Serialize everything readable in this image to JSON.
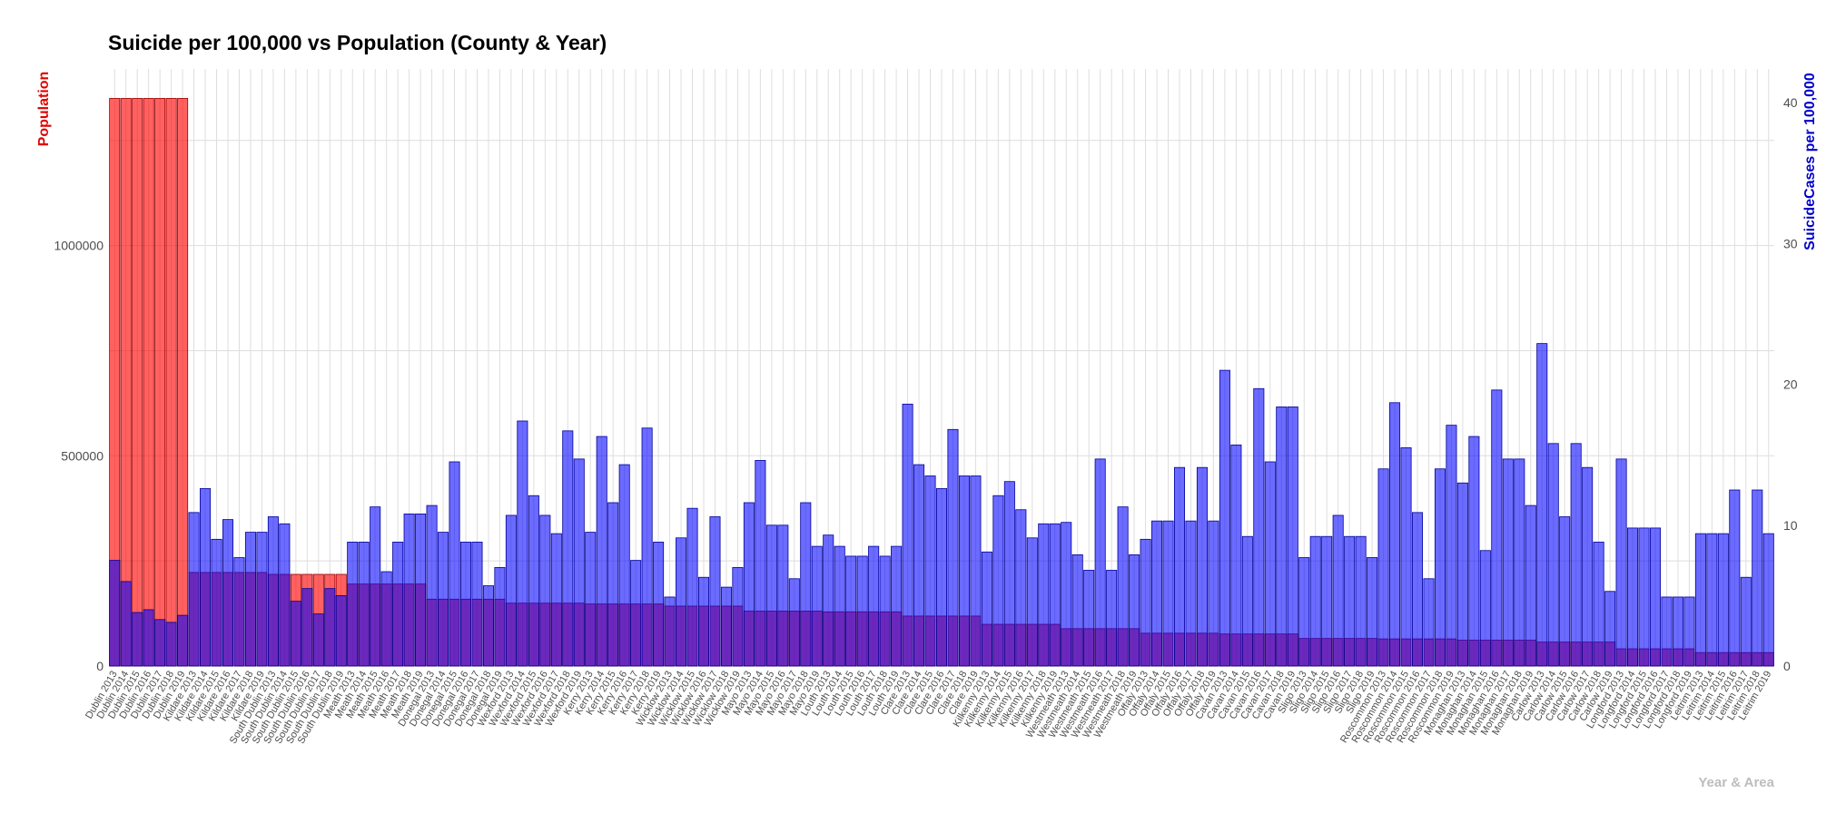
{
  "chart_data": {
    "type": "bar",
    "title": "Suicide per 100,000 vs Population (County & Year)",
    "xlabel": "Year & Area",
    "ylabel_left": "Population",
    "ylabel_right": "SuicideCases per 100,000",
    "ylim_left": [
      0,
      1420000
    ],
    "ylim_right": [
      0,
      42.4
    ],
    "yticks_left": [
      0,
      500000,
      1000000
    ],
    "yticks_left_labels": [
      "0",
      "500000",
      "1000000"
    ],
    "yticks_right": [
      0,
      10,
      20,
      30,
      40
    ],
    "grid": true,
    "colors": {
      "population": "#ff0000",
      "suicide": "#0000ff",
      "left_axis_title": "#e00000",
      "right_axis_title": "#0000cc"
    },
    "categories": [
      "Dublin 2013",
      "Dublin 2014",
      "Dublin 2015",
      "Dublin 2016",
      "Dublin 2017",
      "Dublin 2018",
      "Dublin 2019",
      "Kildare 2013",
      "Kildare 2014",
      "Kildare 2015",
      "Kildare 2016",
      "Kildare 2017",
      "Kildare 2018",
      "Kildare 2019",
      "South Dublin 2013",
      "South Dublin 2014",
      "South Dublin 2015",
      "South Dublin 2016",
      "South Dublin 2017",
      "South Dublin 2018",
      "South Dublin 2019",
      "Meath 2013",
      "Meath 2014",
      "Meath 2015",
      "Meath 2016",
      "Meath 2017",
      "Meath 2018",
      "Meath 2019",
      "Donegal 2013",
      "Donegal 2014",
      "Donegal 2015",
      "Donegal 2016",
      "Donegal 2017",
      "Donegal 2018",
      "Donegal 2019",
      "Wexford 2013",
      "Wexford 2014",
      "Wexford 2015",
      "Wexford 2016",
      "Wexford 2017",
      "Wexford 2018",
      "Wexford 2019",
      "Kerry 2013",
      "Kerry 2014",
      "Kerry 2015",
      "Kerry 2016",
      "Kerry 2017",
      "Kerry 2018",
      "Kerry 2019",
      "Wicklow 2013",
      "Wicklow 2014",
      "Wicklow 2015",
      "Wicklow 2016",
      "Wicklow 2017",
      "Wicklow 2018",
      "Wicklow 2019",
      "Mayo 2013",
      "Mayo 2014",
      "Mayo 2015",
      "Mayo 2016",
      "Mayo 2017",
      "Mayo 2018",
      "Mayo 2019",
      "Louth 2013",
      "Louth 2014",
      "Louth 2015",
      "Louth 2016",
      "Louth 2017",
      "Louth 2018",
      "Louth 2019",
      "Clare 2013",
      "Clare 2014",
      "Clare 2015",
      "Clare 2016",
      "Clare 2017",
      "Clare 2018",
      "Clare 2019",
      "Kilkenny 2013",
      "Kilkenny 2014",
      "Kilkenny 2015",
      "Kilkenny 2016",
      "Kilkenny 2017",
      "Kilkenny 2018",
      "Kilkenny 2019",
      "Westmeath 2013",
      "Westmeath 2014",
      "Westmeath 2015",
      "Westmeath 2016",
      "Westmeath 2017",
      "Westmeath 2018",
      "Westmeath 2019",
      "Offaly 2013",
      "Offaly 2014",
      "Offaly 2015",
      "Offaly 2016",
      "Offaly 2017",
      "Offaly 2018",
      "Offaly 2019",
      "Cavan 2013",
      "Cavan 2014",
      "Cavan 2015",
      "Cavan 2016",
      "Cavan 2017",
      "Cavan 2018",
      "Cavan 2019",
      "Sligo 2013",
      "Sligo 2014",
      "Sligo 2015",
      "Sligo 2016",
      "Sligo 2017",
      "Sligo 2018",
      "Sligo 2019",
      "Roscommon 2013",
      "Roscommon 2014",
      "Roscommon 2015",
      "Roscommon 2016",
      "Roscommon 2017",
      "Roscommon 2018",
      "Roscommon 2019",
      "Monaghan 2013",
      "Monaghan 2014",
      "Monaghan 2015",
      "Monaghan 2016",
      "Monaghan 2017",
      "Monaghan 2018",
      "Monaghan 2019",
      "Carlow 2013",
      "Carlow 2014",
      "Carlow 2015",
      "Carlow 2016",
      "Carlow 2017",
      "Carlow 2018",
      "Carlow 2019",
      "Longford 2013",
      "Longford 2014",
      "Longford 2015",
      "Longford 2016",
      "Longford 2017",
      "Longford 2018",
      "Longford 2019",
      "Leitrim 2013",
      "Leitrim 2014",
      "Leitrim 2015",
      "Leitrim 2016",
      "Leitrim 2017",
      "Leitrim 2018",
      "Leitrim 2019"
    ],
    "series": [
      {
        "name": "Population",
        "axis": "left",
        "values": [
          1350000,
          1350000,
          1350000,
          1350000,
          1350000,
          1350000,
          1350000,
          222500,
          222500,
          222500,
          222500,
          222500,
          222500,
          222500,
          218000,
          218000,
          218000,
          218000,
          218000,
          218000,
          218000,
          195000,
          195000,
          195000,
          195000,
          195000,
          195000,
          195000,
          159000,
          159000,
          159000,
          159000,
          159000,
          159000,
          159000,
          149500,
          149500,
          149500,
          149500,
          149500,
          149500,
          149500,
          147500,
          147500,
          147500,
          147500,
          147500,
          147500,
          147500,
          142500,
          142500,
          142500,
          142500,
          142500,
          142500,
          142500,
          130600,
          130600,
          130600,
          130600,
          130600,
          130600,
          130600,
          128900,
          128900,
          128900,
          128900,
          128900,
          128900,
          128900,
          118800,
          118800,
          118800,
          118800,
          118800,
          118800,
          118800,
          99200,
          99200,
          99200,
          99200,
          99200,
          99200,
          99200,
          88800,
          88800,
          88800,
          88800,
          88800,
          88800,
          88800,
          78000,
          78000,
          78000,
          78000,
          78000,
          78000,
          78000,
          76200,
          76200,
          76200,
          76200,
          76200,
          76200,
          76200,
          65500,
          65500,
          65500,
          65500,
          65500,
          65500,
          65500,
          64500,
          64500,
          64500,
          64500,
          64500,
          64500,
          64500,
          61400,
          61400,
          61400,
          61400,
          61400,
          61400,
          61400,
          56900,
          56900,
          56900,
          56900,
          56900,
          56900,
          56900,
          40900,
          40900,
          40900,
          40900,
          40900,
          40900,
          40900,
          32000,
          32000,
          32000,
          32000,
          32000,
          32000,
          32000
        ]
      },
      {
        "name": "SuicideCases per 100,000",
        "axis": "right",
        "values": [
          7.5,
          6.0,
          3.8,
          4.0,
          3.3,
          3.1,
          3.6,
          10.9,
          12.6,
          9.0,
          10.4,
          7.7,
          9.5,
          9.5,
          10.6,
          10.1,
          4.6,
          5.5,
          3.7,
          5.5,
          5.0,
          8.8,
          8.8,
          11.3,
          6.7,
          8.8,
          10.8,
          10.8,
          11.4,
          9.5,
          14.5,
          8.8,
          8.8,
          5.7,
          7.0,
          10.7,
          17.4,
          12.1,
          10.7,
          9.4,
          16.7,
          14.7,
          9.5,
          16.3,
          11.6,
          14.3,
          7.5,
          16.9,
          8.8,
          4.9,
          9.1,
          11.2,
          6.3,
          10.6,
          5.6,
          7.0,
          11.6,
          14.6,
          10.0,
          10.0,
          6.2,
          11.6,
          8.5,
          9.3,
          8.5,
          7.8,
          7.8,
          8.5,
          7.8,
          8.5,
          18.6,
          14.3,
          13.5,
          12.6,
          16.8,
          13.5,
          13.5,
          8.1,
          12.1,
          13.1,
          11.1,
          9.1,
          10.1,
          10.1,
          10.2,
          7.9,
          6.8,
          14.7,
          6.8,
          11.3,
          7.9,
          9.0,
          10.3,
          10.3,
          14.1,
          10.3,
          14.1,
          10.3,
          21.0,
          15.7,
          9.2,
          19.7,
          14.5,
          18.4,
          18.4,
          7.7,
          9.2,
          9.2,
          10.7,
          9.2,
          9.2,
          7.7,
          14.0,
          18.7,
          15.5,
          10.9,
          6.2,
          14.0,
          17.1,
          13.0,
          16.3,
          8.2,
          19.6,
          14.7,
          14.7,
          11.4,
          22.9,
          15.8,
          10.6,
          15.8,
          14.1,
          8.8,
          5.3,
          14.7,
          9.8,
          9.8,
          9.8,
          4.9,
          4.9,
          4.9,
          9.4,
          9.4,
          9.4,
          12.5,
          6.3,
          12.5,
          9.4
        ]
      }
    ]
  }
}
